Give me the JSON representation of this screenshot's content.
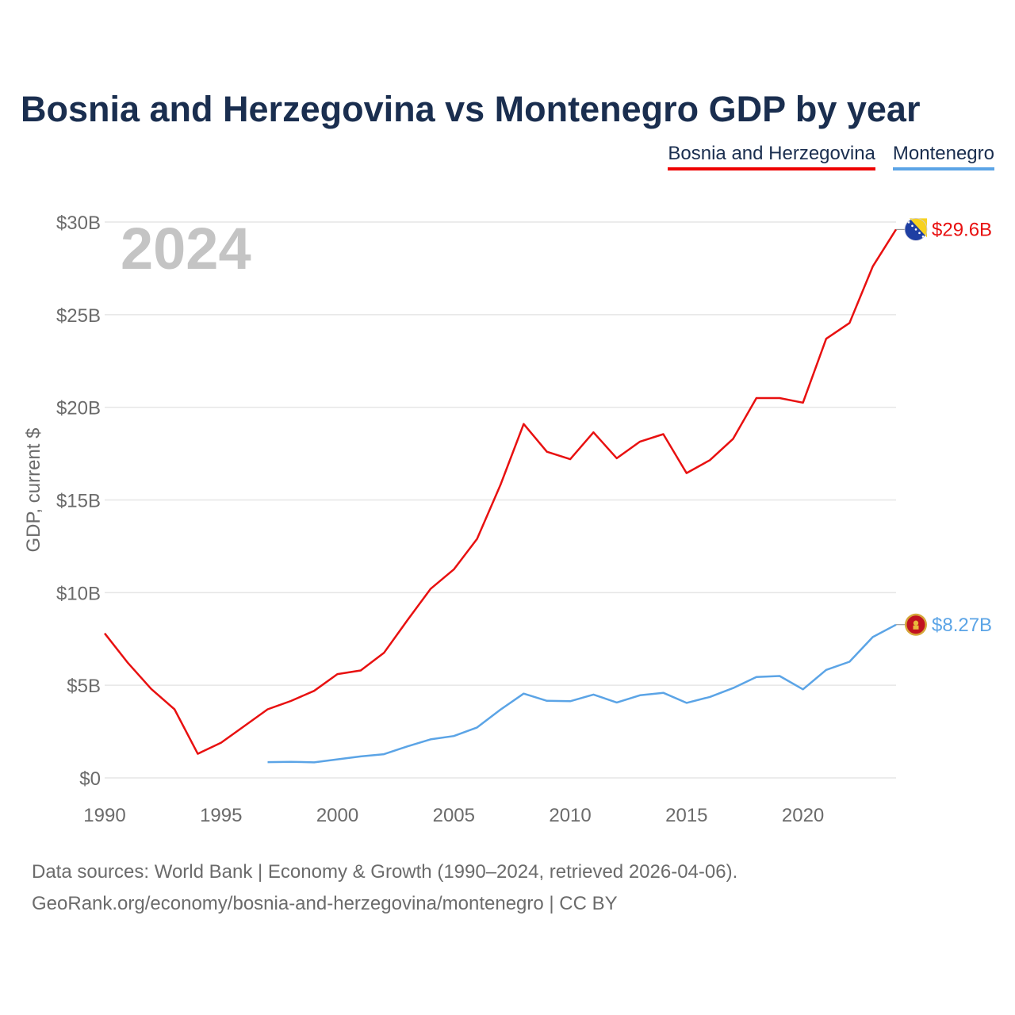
{
  "title": "Bosnia and Herzegovina vs Montenegro GDP by year",
  "chart_data": {
    "type": "line",
    "title": "Bosnia and Herzegovina vs Montenegro GDP by year",
    "ylabel": "GDP, current $",
    "xlabel": "",
    "xlim": [
      1990,
      2024
    ],
    "ylim": [
      0,
      30
    ],
    "y_unit": "billion current US$",
    "x_ticks": [
      1990,
      1995,
      2000,
      2005,
      2010,
      2015,
      2020
    ],
    "x_tick_labels": [
      "1990",
      "1995",
      "2000",
      "2005",
      "2010",
      "2015",
      "2020"
    ],
    "y_ticks": [
      0,
      5,
      10,
      15,
      20,
      25,
      30
    ],
    "y_tick_labels": [
      "$0",
      "$5B",
      "$10B",
      "$15B",
      "$20B",
      "$25B",
      "$30B"
    ],
    "year_label": "2024",
    "series": [
      {
        "name": "Bosnia and Herzegovina",
        "color": "#e81010",
        "end_label": "$29.6B",
        "flag_icon": "bosnia-flag-icon",
        "x": [
          1990,
          1991,
          1992,
          1993,
          1994,
          1995,
          1996,
          1997,
          1998,
          1999,
          2000,
          2001,
          2002,
          2003,
          2004,
          2005,
          2006,
          2007,
          2008,
          2009,
          2010,
          2011,
          2012,
          2013,
          2014,
          2015,
          2016,
          2017,
          2018,
          2019,
          2020,
          2021,
          2022,
          2023,
          2024
        ],
        "values": [
          7.8,
          6.2,
          4.8,
          3.7,
          1.3,
          1.9,
          2.8,
          3.7,
          4.15,
          4.7,
          5.6,
          5.8,
          6.75,
          8.5,
          10.2,
          11.25,
          12.9,
          15.8,
          19.1,
          17.6,
          17.2,
          18.65,
          17.25,
          18.15,
          18.55,
          16.45,
          17.15,
          18.3,
          20.5,
          20.5,
          20.25,
          23.7,
          24.55,
          27.6,
          29.6
        ]
      },
      {
        "name": "Montenegro",
        "color": "#5ba4e6",
        "end_label": "$8.27B",
        "flag_icon": "montenegro-flag-icon",
        "x": [
          1997,
          1998,
          1999,
          2000,
          2001,
          2002,
          2003,
          2004,
          2005,
          2006,
          2007,
          2008,
          2009,
          2010,
          2011,
          2012,
          2013,
          2014,
          2015,
          2016,
          2017,
          2018,
          2019,
          2020,
          2021,
          2022,
          2023,
          2024
        ],
        "values": [
          0.85,
          0.87,
          0.84,
          1.0,
          1.16,
          1.28,
          1.7,
          2.08,
          2.26,
          2.72,
          3.68,
          4.55,
          4.16,
          4.14,
          4.5,
          4.07,
          4.46,
          4.59,
          4.05,
          4.37,
          4.85,
          5.45,
          5.5,
          4.78,
          5.83,
          6.27,
          7.6,
          8.27
        ]
      }
    ],
    "legend": [
      "Bosnia and Herzegovina",
      "Montenegro"
    ],
    "legend_position": "top-right"
  },
  "footer": {
    "line1": "Data sources: World Bank | Economy & Growth (1990–2024, retrieved 2026-04-06).",
    "line2": "GeoRank.org/economy/bosnia-and-herzegovina/montenegro | CC BY"
  }
}
